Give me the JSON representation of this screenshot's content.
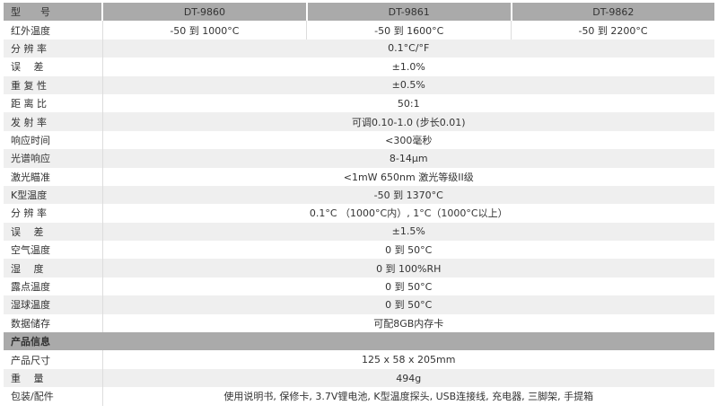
{
  "header": {
    "label": "型　　号",
    "models": [
      "DT-9860",
      "DT-9861",
      "DT-9862"
    ]
  },
  "ir_range": {
    "label": "红外温度",
    "values": [
      "-50 到 1000°C",
      "-50 到 1600°C",
      "-50 到 2200°C"
    ]
  },
  "rows": [
    {
      "label": "分 辨 率",
      "value": "0.1°C/°F"
    },
    {
      "label": "误　 差",
      "value": "±1.0%"
    },
    {
      "label": "重 复 性",
      "value": "±0.5%"
    },
    {
      "label": "距 离 比",
      "value": "50:1"
    },
    {
      "label": "发 射 率",
      "value": "可调0.10-1.0 (步长0.01)"
    },
    {
      "label": "响应时间",
      "value": "<300毫秒"
    },
    {
      "label": "光谱响应",
      "value": "8-14μm"
    },
    {
      "label": "激光瞄准",
      "value": "<1mW 650nm 激光等级II级"
    },
    {
      "label": "K型温度",
      "value": "-50 到 1370°C"
    },
    {
      "label": "分 辨 率",
      "value": "0.1°C （1000°C内）, 1°C（1000°C以上）"
    },
    {
      "label": "误　 差",
      "value": "±1.5%"
    },
    {
      "label": "空气温度",
      "value": "0 到 50°C"
    },
    {
      "label": "湿　 度",
      "value": "0 到 100%RH"
    },
    {
      "label": "露点温度",
      "value": "0 到 50°C"
    },
    {
      "label": "湿球温度",
      "value": "0 到 50°C"
    },
    {
      "label": "数据储存",
      "value": "可配8GB内存卡"
    }
  ],
  "section": {
    "label": "产品信息"
  },
  "info": [
    {
      "label": "产品尺寸",
      "value": "125 x 58 x 205mm"
    },
    {
      "label": "重　 量",
      "value": "494g"
    },
    {
      "label": "包装/配件",
      "value": "使用说明书, 保修卡, 3.7V锂电池, K型温度探头, USB连接线, 充电器, 三脚架, 手提箱"
    }
  ]
}
